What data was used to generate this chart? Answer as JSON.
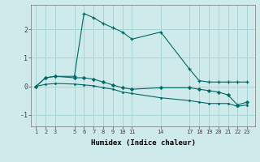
{
  "xlabel": "Humidex (Indice chaleur)",
  "background_color": "#ceeaea",
  "grid_color": "#a8d4d4",
  "line_color": "#006868",
  "line1_x": [
    1,
    2,
    3,
    5,
    6,
    7,
    8,
    9,
    10,
    11,
    14,
    17,
    18,
    19,
    20,
    21,
    22,
    23
  ],
  "line1_y": [
    0.0,
    0.3,
    0.35,
    0.35,
    2.55,
    2.4,
    2.2,
    2.05,
    1.9,
    1.65,
    1.9,
    0.6,
    0.2,
    0.15,
    0.15,
    0.15,
    0.15,
    0.15
  ],
  "line2_x": [
    1,
    2,
    3,
    5,
    6,
    7,
    8,
    9,
    10,
    11,
    14,
    17,
    18,
    19,
    20,
    21,
    22,
    23
  ],
  "line2_y": [
    0.0,
    0.3,
    0.35,
    0.3,
    0.3,
    0.25,
    0.15,
    0.05,
    -0.05,
    -0.1,
    -0.05,
    -0.05,
    -0.1,
    -0.15,
    -0.2,
    -0.3,
    -0.65,
    -0.55
  ],
  "line3_x": [
    1,
    2,
    3,
    5,
    6,
    7,
    8,
    9,
    10,
    11,
    14,
    17,
    18,
    19,
    20,
    21,
    22,
    23
  ],
  "line3_y": [
    0.0,
    0.07,
    0.1,
    0.08,
    0.05,
    0.02,
    -0.05,
    -0.1,
    -0.2,
    -0.25,
    -0.4,
    -0.5,
    -0.55,
    -0.6,
    -0.6,
    -0.6,
    -0.7,
    -0.65
  ],
  "xticks": [
    1,
    2,
    3,
    5,
    6,
    7,
    8,
    9,
    10,
    11,
    14,
    17,
    18,
    19,
    20,
    21,
    22,
    23
  ],
  "yticks": [
    -1,
    0,
    1,
    2
  ],
  "ylim": [
    -1.4,
    2.85
  ],
  "xlim": [
    0.5,
    23.8
  ]
}
